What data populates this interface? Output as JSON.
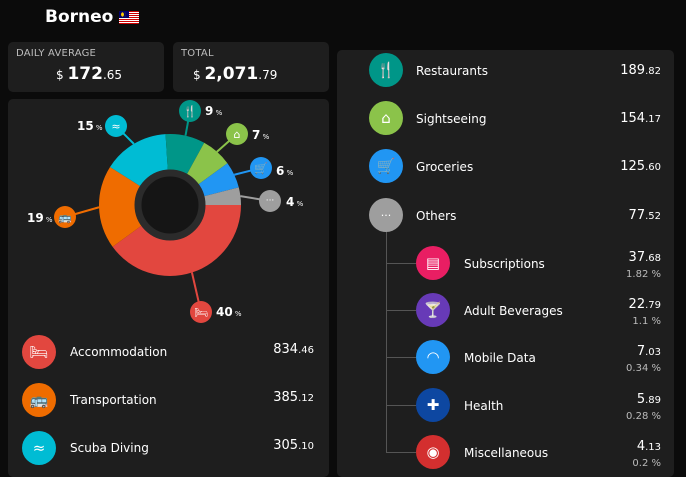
{
  "header": {
    "title": "Borneo",
    "flag_icon": "malaysia-flag-icon"
  },
  "stats": {
    "daily_average": {
      "label": "DAILY AVERAGE",
      "currency": "$",
      "whole": "172",
      "cents": ".65"
    },
    "total": {
      "label": "TOTAL",
      "currency": "$",
      "whole": "2,071",
      "cents": ".79"
    }
  },
  "chart_data": {
    "type": "pie",
    "style": "donut",
    "slices": [
      {
        "name": "Accommodation",
        "percent": 40,
        "color": "#e2473f",
        "icon": "bed-icon",
        "label": "40"
      },
      {
        "name": "Transportation",
        "percent": 19,
        "color": "#ef6c00",
        "icon": "bus-icon",
        "label": "19"
      },
      {
        "name": "Scuba Diving",
        "percent": 15,
        "color": "#00bcd4",
        "icon": "swimming-icon",
        "label": "15"
      },
      {
        "name": "Restaurants",
        "percent": 9,
        "color": "#009688",
        "icon": "fork-knife-icon",
        "label": "9"
      },
      {
        "name": "Sightseeing",
        "percent": 7,
        "color": "#8bc34a",
        "icon": "monument-icon",
        "label": "7"
      },
      {
        "name": "Groceries",
        "percent": 6,
        "color": "#2196f3",
        "icon": "cart-icon",
        "label": "6"
      },
      {
        "name": "Others",
        "percent": 4,
        "color": "#9e9e9e",
        "icon": "more-icon",
        "label": "4"
      }
    ],
    "pct_suffix": "%"
  },
  "left_categories": [
    {
      "name": "Accommodation",
      "whole": "834",
      "cents": ".46",
      "color": "#e2473f",
      "icon": "bed-icon"
    },
    {
      "name": "Transportation",
      "whole": "385",
      "cents": ".12",
      "color": "#ef6c00",
      "icon": "bus-icon"
    },
    {
      "name": "Scuba Diving",
      "whole": "305",
      "cents": ".10",
      "color": "#00bcd4",
      "icon": "swimming-icon"
    }
  ],
  "right_categories": [
    {
      "name": "Restaurants",
      "whole": "189",
      "cents": ".82",
      "color": "#009688",
      "icon": "fork-knife-icon"
    },
    {
      "name": "Sightseeing",
      "whole": "154",
      "cents": ".17",
      "color": "#8bc34a",
      "icon": "monument-icon"
    },
    {
      "name": "Groceries",
      "whole": "125",
      "cents": ".60",
      "color": "#2196f3",
      "icon": "cart-icon"
    },
    {
      "name": "Others",
      "whole": "77",
      "cents": ".52",
      "color": "#9e9e9e",
      "icon": "more-icon"
    }
  ],
  "subcategories": [
    {
      "name": "Subscriptions",
      "whole": "37",
      "cents": ".68",
      "pct": "1.82 %",
      "color": "#e91e63",
      "icon": "book-icon"
    },
    {
      "name": "Adult Beverages",
      "whole": "22",
      "cents": ".79",
      "pct": "1.1 %",
      "color": "#673ab7",
      "icon": "cocktail-icon"
    },
    {
      "name": "Mobile Data",
      "whole": "7",
      "cents": ".03",
      "pct": "0.34 %",
      "color": "#2196f3",
      "icon": "wifi-icon"
    },
    {
      "name": "Health",
      "whole": "5",
      "cents": ".89",
      "pct": "0.28 %",
      "color": "#0d47a1",
      "icon": "first-aid-icon"
    },
    {
      "name": "Miscellaneous",
      "whole": "4",
      "cents": ".13",
      "pct": "0.2 %",
      "color": "#d32f2f",
      "icon": "camera-icon"
    }
  ]
}
